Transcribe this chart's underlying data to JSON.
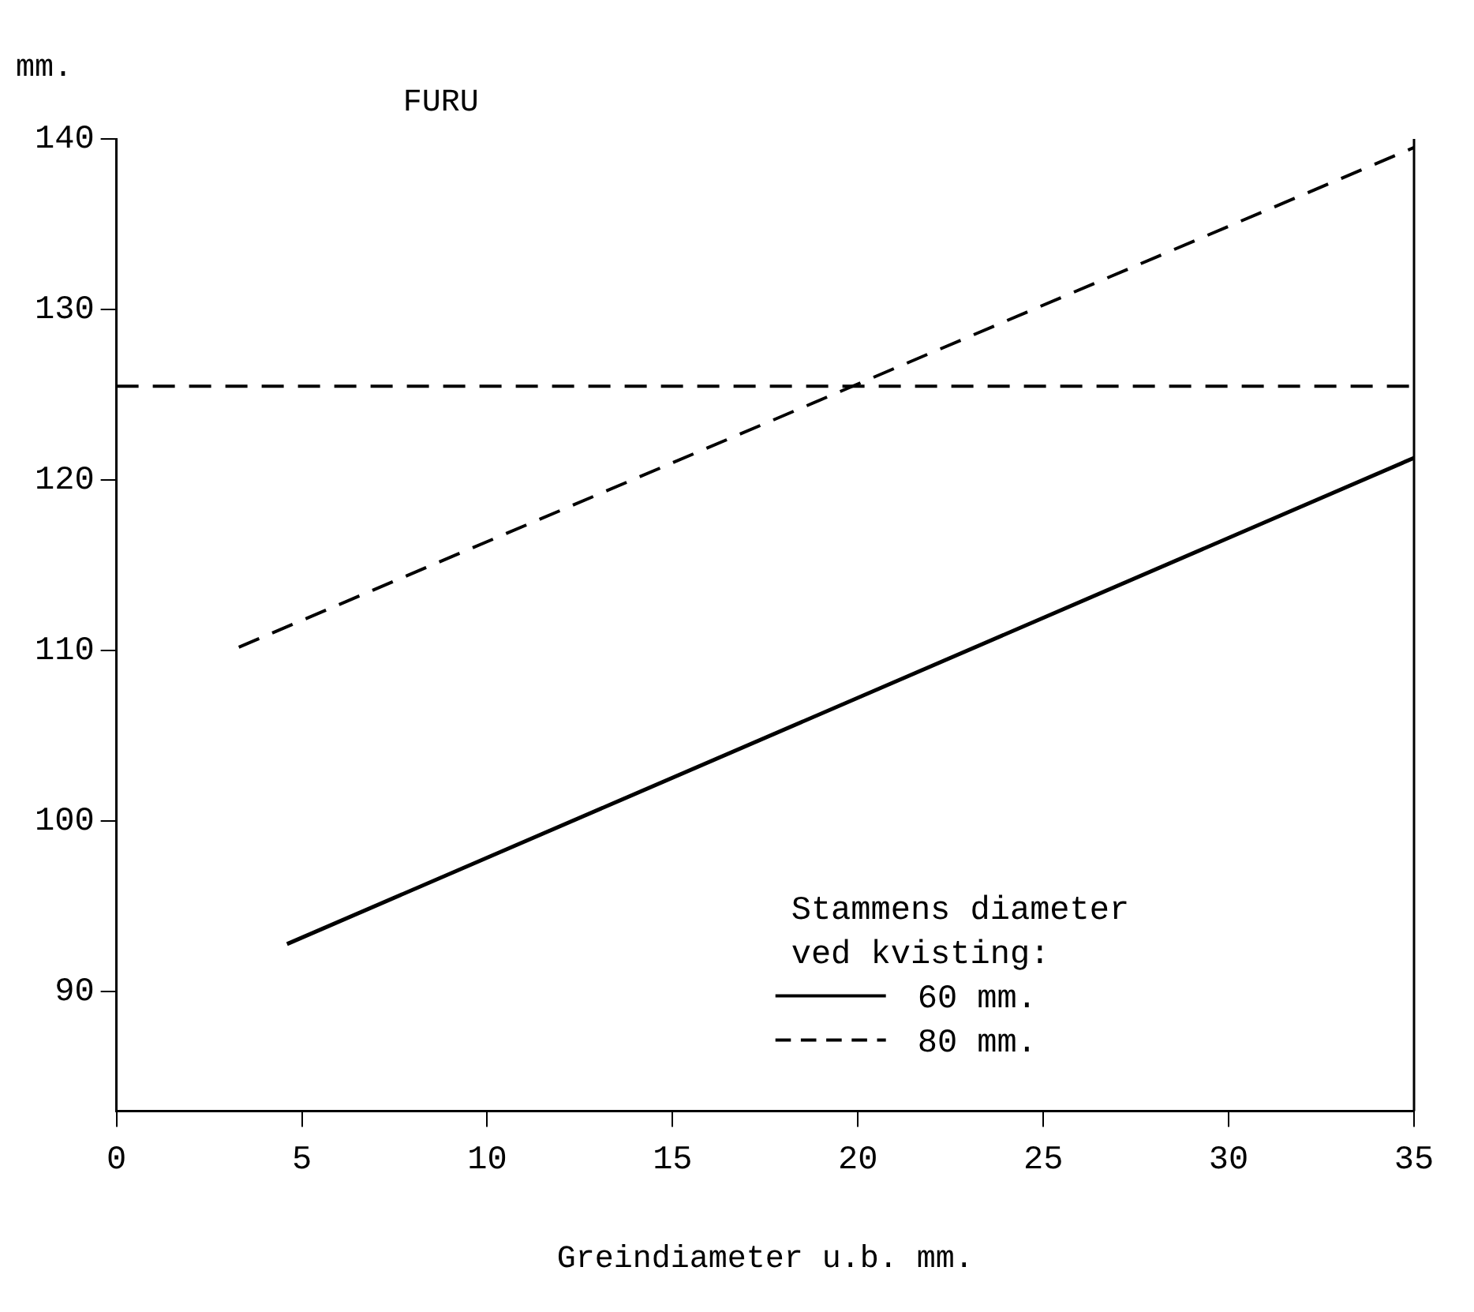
{
  "chart_data": {
    "type": "line",
    "title": "FURU",
    "ylabel": "mm.",
    "xlabel": "Greindiameter u.b. mm.",
    "legend_title": "Stammens diameter ved kvisting:",
    "legend": "bottom right",
    "grid": false,
    "marker": "none",
    "series": [
      {
        "name": "60 mm.",
        "color": "#000000",
        "line_style": "solid",
        "x": [
          4.6,
          35
        ],
        "values": [
          92.8,
          121.3
        ]
      },
      {
        "name": "80 mm.",
        "color": "#000000",
        "line_style": "dashed",
        "x": [
          3.3,
          35
        ],
        "values": [
          110.2,
          139.5
        ]
      }
    ],
    "ref_lines": [
      {
        "axis": "y",
        "value": 125.5,
        "label": null,
        "color": "#000000",
        "line_style": "dashed"
      }
    ],
    "xlim": [
      0,
      35
    ],
    "xticks": [
      0,
      5,
      10,
      15,
      20,
      25,
      30,
      35
    ],
    "ylim": [
      83,
      140
    ],
    "yticks": [
      90,
      100,
      110,
      120,
      130,
      140
    ]
  }
}
